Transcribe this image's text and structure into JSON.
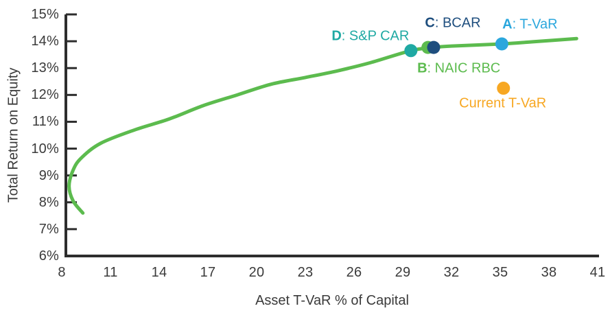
{
  "chart_data": {
    "type": "scatter",
    "title": "",
    "xlabel": "Asset T-VaR % of Capital",
    "ylabel": "Total Return on Equity",
    "xlim": [
      8,
      41
    ],
    "ylim": [
      6,
      15
    ],
    "x_ticks": [
      8,
      11,
      14,
      17,
      20,
      23,
      26,
      29,
      32,
      35,
      38,
      41
    ],
    "y_ticks": [
      6,
      7,
      8,
      9,
      10,
      11,
      12,
      13,
      14,
      15
    ],
    "y_tick_suffix": "%",
    "grid": false,
    "legend_position": "none",
    "axis_color": "#2d2d2d",
    "series": [
      {
        "name": "efficient-frontier-curve",
        "type": "line",
        "color": "#5cbb4e",
        "points": [
          [
            9.3,
            7.6
          ],
          [
            8.7,
            8.05
          ],
          [
            8.45,
            8.6
          ],
          [
            8.7,
            9.2
          ],
          [
            9.2,
            9.65
          ],
          [
            10.4,
            10.2
          ],
          [
            12.5,
            10.7
          ],
          [
            14.6,
            11.1
          ],
          [
            16.7,
            11.6
          ],
          [
            18.8,
            12.0
          ],
          [
            20.9,
            12.4
          ],
          [
            23.0,
            12.65
          ],
          [
            25.0,
            12.9
          ],
          [
            27.0,
            13.2
          ],
          [
            29.5,
            13.65
          ],
          [
            30.9,
            13.77
          ],
          [
            32.0,
            13.82
          ],
          [
            35.1,
            13.9
          ],
          [
            37.0,
            13.98
          ],
          [
            39.7,
            14.1
          ]
        ]
      }
    ],
    "markers": [
      {
        "id": "D",
        "label_bold": "D",
        "label_rest": ": S&P CAR",
        "x": 29.5,
        "y": 13.65,
        "color": "#1fa9a3"
      },
      {
        "id": "B",
        "label_bold": "B",
        "label_rest": ": NAIC RBC",
        "x": 30.55,
        "y": 13.77,
        "color": "#5cbb4e"
      },
      {
        "id": "C",
        "label_bold": "C",
        "label_rest": ": BCAR",
        "x": 30.9,
        "y": 13.77,
        "color": "#1e4e7e"
      },
      {
        "id": "A",
        "label_bold": "A",
        "label_rest": ": T-VaR",
        "x": 35.1,
        "y": 13.9,
        "color": "#2ba7dd"
      },
      {
        "id": "current",
        "label_bold": "",
        "label_rest": "Current T-VaR",
        "x": 35.2,
        "y": 12.25,
        "color": "#f7a722"
      }
    ]
  }
}
